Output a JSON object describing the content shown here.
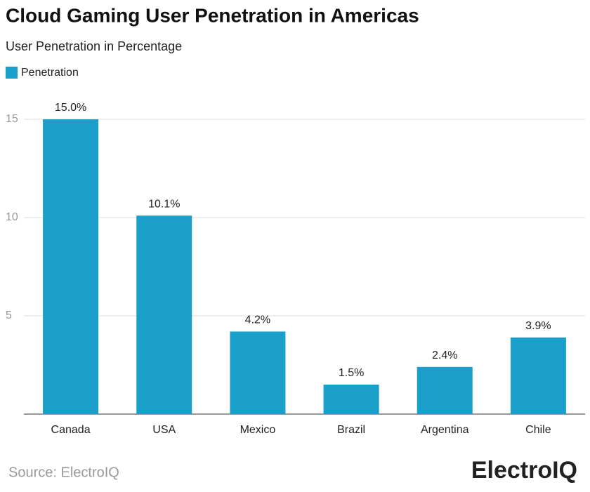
{
  "chart_data": {
    "type": "bar",
    "title": "Cloud Gaming User Penetration in Americas",
    "subtitle": "User Penetration in Percentage",
    "series": [
      {
        "name": "Penetration",
        "color": "#1a9fcb",
        "values": [
          15.0,
          10.1,
          4.2,
          1.5,
          2.4,
          3.9
        ],
        "value_labels": [
          "15.0%",
          "10.1%",
          "4.2%",
          "1.5%",
          "2.4%",
          "3.9%"
        ]
      }
    ],
    "categories": [
      "Canada",
      "USA",
      "Mexico",
      "Brazil",
      "Argentina",
      "Chile"
    ],
    "ylim": [
      0,
      15
    ],
    "yticks": [
      5,
      10,
      15
    ],
    "grid": true,
    "legend": "top-left",
    "source": "Source: ElectroIQ",
    "logo": "ElectroIQ"
  }
}
